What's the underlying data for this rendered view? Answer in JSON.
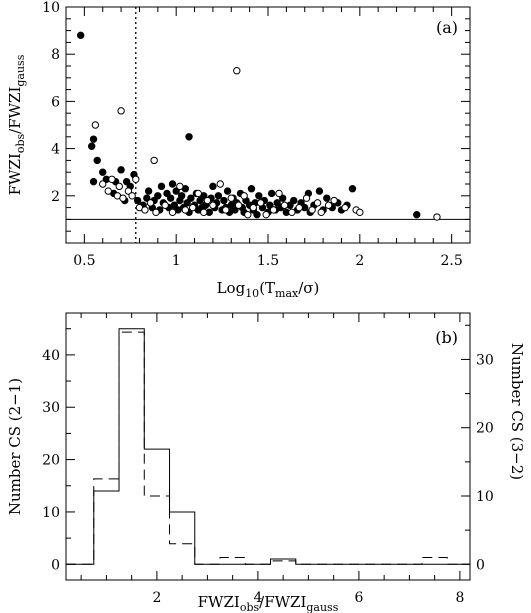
{
  "chart_data": [
    {
      "type": "scatter",
      "panel_label": "(a)",
      "xlabel": {
        "main": "Log",
        "sub": "10",
        "rest_open": "(T",
        "sub2": "max",
        "rest_close": "/σ)"
      },
      "ylabel": {
        "part1": "FWZI",
        "sub1": "obs",
        "part2": "/FWZI",
        "sub2": "gauss"
      },
      "xlim": [
        0.4,
        2.6
      ],
      "ylim": [
        0,
        10
      ],
      "xticks": [
        0.5,
        1,
        1.5,
        2,
        2.5
      ],
      "xtick_labels": [
        "0.5",
        "1",
        "1.5",
        "2",
        "2.5"
      ],
      "yticks": [
        2,
        4,
        6,
        8,
        10
      ],
      "ytick_labels": [
        "2",
        "4",
        "6",
        "8",
        "10"
      ],
      "reference_hline_y": 1.0,
      "reference_vline_x": 0.78,
      "series": [
        {
          "marker": "filled",
          "points": [
            [
              0.48,
              8.8
            ],
            [
              0.55,
              4.4
            ],
            [
              0.54,
              4.1
            ],
            [
              0.57,
              3.5
            ],
            [
              0.6,
              3.0
            ],
            [
              0.55,
              2.6
            ],
            [
              0.62,
              2.7
            ],
            [
              0.67,
              2.6
            ],
            [
              0.7,
              3.1
            ],
            [
              0.73,
              2.6
            ],
            [
              0.75,
              2.4
            ],
            [
              0.77,
              2.9
            ],
            [
              0.79,
              1.8
            ],
            [
              0.72,
              1.8
            ],
            [
              0.66,
              2.1
            ],
            [
              0.82,
              1.6
            ],
            [
              0.84,
              1.9
            ],
            [
              0.85,
              2.2
            ],
            [
              0.87,
              1.5
            ],
            [
              0.88,
              1.8
            ],
            [
              0.9,
              2.0
            ],
            [
              0.91,
              1.4
            ],
            [
              0.92,
              2.4
            ],
            [
              0.93,
              1.7
            ],
            [
              0.95,
              2.1
            ],
            [
              0.96,
              1.5
            ],
            [
              0.97,
              1.9
            ],
            [
              0.98,
              2.5
            ],
            [
              0.99,
              1.6
            ],
            [
              1.0,
              2.2
            ],
            [
              1.01,
              1.4
            ],
            [
              1.02,
              1.8
            ],
            [
              1.03,
              2.0
            ],
            [
              1.04,
              1.5
            ],
            [
              1.05,
              2.3
            ],
            [
              1.06,
              1.7
            ],
            [
              1.07,
              1.3
            ],
            [
              1.08,
              1.9
            ],
            [
              1.1,
              1.6
            ],
            [
              1.11,
              2.1
            ],
            [
              1.12,
              1.4
            ],
            [
              1.13,
              1.8
            ],
            [
              1.14,
              1.5
            ],
            [
              1.07,
              4.5
            ],
            [
              1.15,
              2.0
            ],
            [
              1.16,
              1.6
            ],
            [
              1.18,
              1.3
            ],
            [
              1.19,
              1.9
            ],
            [
              1.2,
              2.4
            ],
            [
              1.21,
              1.5
            ],
            [
              1.22,
              1.7
            ],
            [
              1.23,
              2.0
            ],
            [
              1.25,
              1.4
            ],
            [
              1.26,
              1.8
            ],
            [
              1.27,
              1.5
            ],
            [
              1.28,
              2.2
            ],
            [
              1.29,
              1.3
            ],
            [
              1.3,
              1.6
            ],
            [
              1.31,
              1.9
            ],
            [
              1.32,
              1.4
            ],
            [
              1.33,
              1.7
            ],
            [
              1.35,
              2.1
            ],
            [
              1.36,
              1.5
            ],
            [
              1.37,
              1.3
            ],
            [
              1.38,
              1.8
            ],
            [
              1.4,
              1.6
            ],
            [
              1.41,
              2.3
            ],
            [
              1.42,
              1.4
            ],
            [
              1.43,
              1.7
            ],
            [
              1.44,
              1.2
            ],
            [
              1.45,
              2.0
            ],
            [
              1.47,
              1.5
            ],
            [
              1.48,
              1.8
            ],
            [
              1.5,
              1.3
            ],
            [
              1.51,
              1.6
            ],
            [
              1.52,
              2.1
            ],
            [
              1.54,
              1.4
            ],
            [
              1.55,
              1.7
            ],
            [
              1.57,
              1.5
            ],
            [
              1.58,
              1.9
            ],
            [
              1.6,
              1.3
            ],
            [
              1.62,
              1.6
            ],
            [
              1.64,
              1.8
            ],
            [
              1.66,
              1.4
            ],
            [
              1.68,
              1.7
            ],
            [
              1.7,
              1.5
            ],
            [
              1.72,
              2.1
            ],
            [
              1.73,
              1.3
            ],
            [
              1.75,
              1.6
            ],
            [
              1.78,
              2.2
            ],
            [
              1.8,
              1.4
            ],
            [
              1.82,
              1.9
            ],
            [
              1.85,
              1.5
            ],
            [
              1.88,
              1.7
            ],
            [
              1.9,
              1.4
            ],
            [
              1.93,
              1.6
            ],
            [
              1.96,
              2.3
            ],
            [
              2.31,
              1.2
            ]
          ]
        },
        {
          "marker": "open",
          "points": [
            [
              0.56,
              5.0
            ],
            [
              0.7,
              5.6
            ],
            [
              0.6,
              2.5
            ],
            [
              0.63,
              2.2
            ],
            [
              0.65,
              2.7
            ],
            [
              0.68,
              2.0
            ],
            [
              0.69,
              2.4
            ],
            [
              0.71,
              1.9
            ],
            [
              0.74,
              2.2
            ],
            [
              0.76,
              2.0
            ],
            [
              0.78,
              2.7
            ],
            [
              0.8,
              1.5
            ],
            [
              0.83,
              1.4
            ],
            [
              0.86,
              1.7
            ],
            [
              0.89,
              1.3
            ],
            [
              0.88,
              3.5
            ],
            [
              0.94,
              1.6
            ],
            [
              0.98,
              1.3
            ],
            [
              1.02,
              2.4
            ],
            [
              1.05,
              1.4
            ],
            [
              1.09,
              1.5
            ],
            [
              1.12,
              2.1
            ],
            [
              1.15,
              1.3
            ],
            [
              1.17,
              1.8
            ],
            [
              1.2,
              1.6
            ],
            [
              1.24,
              2.5
            ],
            [
              1.27,
              1.4
            ],
            [
              1.3,
              1.9
            ],
            [
              1.33,
              7.3
            ],
            [
              1.34,
              1.6
            ],
            [
              1.37,
              2.0
            ],
            [
              1.39,
              1.2
            ],
            [
              1.42,
              1.5
            ],
            [
              1.46,
              1.7
            ],
            [
              1.49,
              1.2
            ],
            [
              1.53,
              1.4
            ],
            [
              1.56,
              2.1
            ],
            [
              1.59,
              1.6
            ],
            [
              1.63,
              1.3
            ],
            [
              1.67,
              1.5
            ],
            [
              1.71,
              1.9
            ],
            [
              1.74,
              1.4
            ],
            [
              1.77,
              1.7
            ],
            [
              1.79,
              1.3
            ],
            [
              1.83,
              1.6
            ],
            [
              1.86,
              1.8
            ],
            [
              1.92,
              1.5
            ],
            [
              1.98,
              1.4
            ],
            [
              2.0,
              1.3
            ],
            [
              2.42,
              1.1
            ]
          ]
        }
      ]
    },
    {
      "type": "histogram",
      "panel_label": "(b)",
      "xlabel": {
        "part1": "FWZI",
        "sub1": "obs",
        "part2": "/FWZI",
        "sub2": "gauss"
      },
      "ylabel_left": "Number CS (2−1)",
      "ylabel_right": "Number CS (3−2)",
      "xlim": [
        0.2,
        8.2
      ],
      "ylim_left": [
        -3,
        48
      ],
      "ylim_right": [
        -2.3,
        36.8
      ],
      "xticks": [
        2,
        4,
        6,
        8
      ],
      "xtick_labels": [
        "2",
        "4",
        "6",
        "8"
      ],
      "yticks_left": [
        0,
        10,
        20,
        30,
        40
      ],
      "ytick_labels_left": [
        "0",
        "10",
        "20",
        "30",
        "40"
      ],
      "yticks_right": [
        0,
        10,
        20,
        30
      ],
      "ytick_labels_right": [
        "0",
        "10",
        "20",
        "30"
      ],
      "bin_edges": [
        0.75,
        1.25,
        1.75,
        2.25,
        2.75,
        3.25,
        3.75,
        4.25,
        4.75,
        5.25,
        5.75,
        6.25,
        6.75,
        7.25,
        7.75
      ],
      "series": [
        {
          "style": "solid",
          "axis": "left",
          "counts": [
            14,
            45,
            22,
            10,
            0,
            0,
            0,
            1,
            0,
            0,
            0,
            0,
            0,
            0
          ]
        },
        {
          "style": "dashed",
          "axis": "right",
          "counts": [
            12.5,
            34,
            10,
            3,
            0,
            1,
            0,
            0.5,
            0,
            0,
            0,
            0,
            0,
            1
          ]
        }
      ]
    }
  ]
}
